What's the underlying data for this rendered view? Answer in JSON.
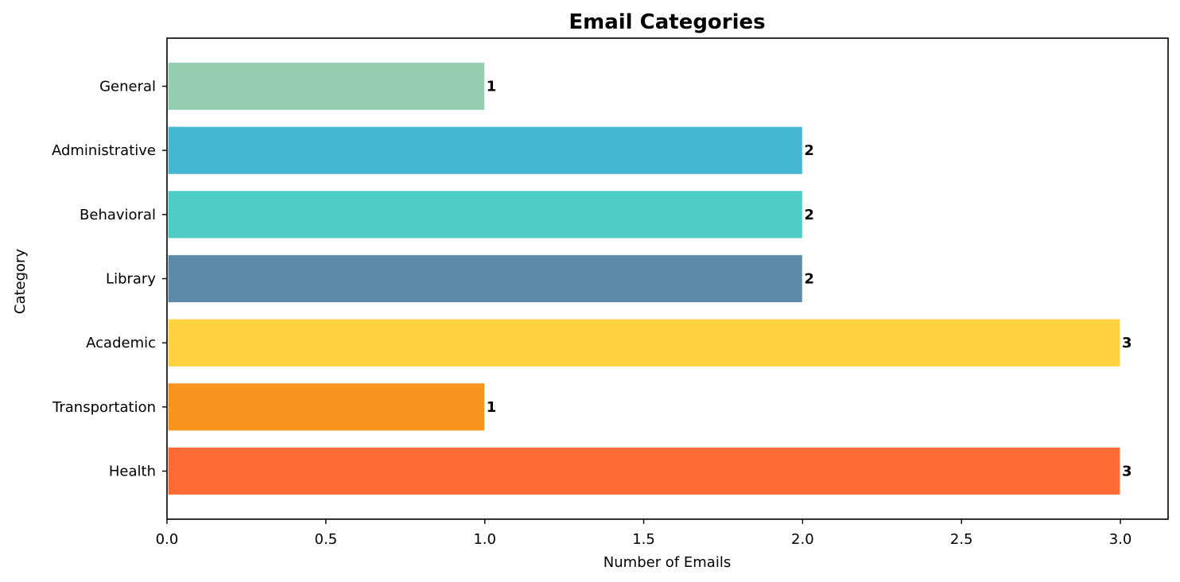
{
  "chart_data": {
    "type": "bar",
    "orientation": "horizontal",
    "title": "Email Categories",
    "xlabel": "Number of Emails",
    "ylabel": "Category",
    "categories": [
      "Health",
      "Transportation",
      "Academic",
      "Library",
      "Behavioral",
      "Administrative",
      "General"
    ],
    "values": [
      3,
      1,
      3,
      2,
      2,
      2,
      1
    ],
    "data_labels": [
      "3",
      "1",
      "3",
      "2",
      "2",
      "2",
      "1"
    ],
    "colors": [
      "#ff6b35",
      "#f7931e",
      "#fed33f",
      "#5d8aa8",
      "#4ecdc4",
      "#45b7d1",
      "#96ceb4"
    ],
    "xlim": [
      0,
      3.15
    ],
    "xticks": [
      0.0,
      0.5,
      1.0,
      1.5,
      2.0,
      2.5,
      3.0
    ],
    "xtick_labels": [
      "0.0",
      "0.5",
      "1.0",
      "1.5",
      "2.0",
      "2.5",
      "3.0"
    ],
    "grid": false,
    "legend": "none"
  }
}
